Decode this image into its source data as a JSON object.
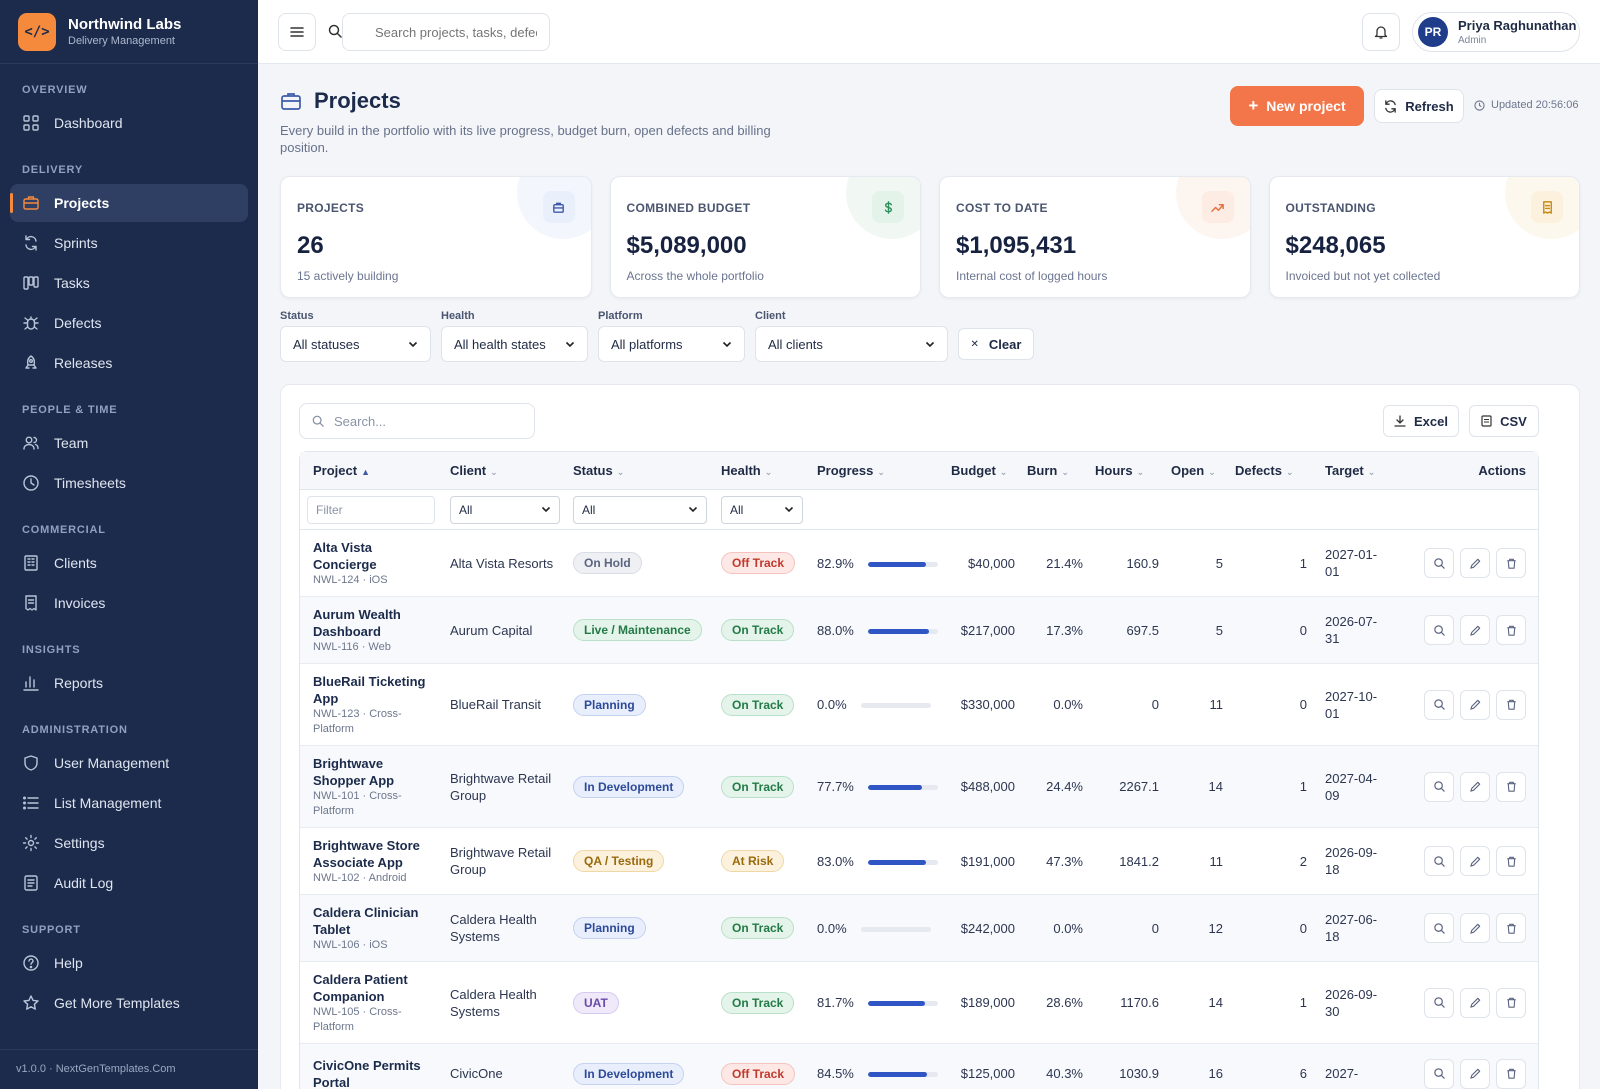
{
  "brand": {
    "name": "Northwind Labs",
    "sub": "Delivery Management",
    "logo": "</>"
  },
  "sidebar": {
    "sections": [
      {
        "heading": "OVERVIEW",
        "items": [
          {
            "label": "Dashboard",
            "icon": "grid-icon"
          }
        ]
      },
      {
        "heading": "DELIVERY",
        "items": [
          {
            "label": "Projects",
            "icon": "briefcase-icon",
            "active": true
          },
          {
            "label": "Sprints",
            "icon": "refresh-icon"
          },
          {
            "label": "Tasks",
            "icon": "kanban-icon"
          },
          {
            "label": "Defects",
            "icon": "bug-icon"
          },
          {
            "label": "Releases",
            "icon": "rocket-icon"
          }
        ]
      },
      {
        "heading": "PEOPLE & TIME",
        "items": [
          {
            "label": "Team",
            "icon": "users-icon"
          },
          {
            "label": "Timesheets",
            "icon": "clock-icon"
          }
        ]
      },
      {
        "heading": "COMMERCIAL",
        "items": [
          {
            "label": "Clients",
            "icon": "building-icon"
          },
          {
            "label": "Invoices",
            "icon": "receipt-icon"
          }
        ]
      },
      {
        "heading": "INSIGHTS",
        "items": [
          {
            "label": "Reports",
            "icon": "bar-chart-icon"
          }
        ]
      },
      {
        "heading": "ADMINISTRATION",
        "items": [
          {
            "label": "User Management",
            "icon": "shield-icon"
          },
          {
            "label": "List Management",
            "icon": "list-icon"
          },
          {
            "label": "Settings",
            "icon": "gear-icon"
          },
          {
            "label": "Audit Log",
            "icon": "document-icon"
          }
        ]
      },
      {
        "heading": "SUPPORT",
        "items": [
          {
            "label": "Help",
            "icon": "help-icon"
          },
          {
            "label": "Get More Templates",
            "icon": "star-icon"
          }
        ]
      }
    ],
    "version": "v1.0.0 · NextGenTemplates.Com"
  },
  "topbar": {
    "search_placeholder": "Search projects, tasks, defects...",
    "user": {
      "initials": "PR",
      "name": "Priya Raghunathan",
      "role": "Admin"
    }
  },
  "page": {
    "title": "Projects",
    "description": "Every build in the portfolio with its live progress, budget burn, open defects and billing position.",
    "new_label": "New project",
    "refresh_label": "Refresh",
    "updated": "Updated 20:56:06"
  },
  "stats": [
    {
      "label": "PROJECTS",
      "value": "26",
      "sub": "15 actively building",
      "icon": "briefcase-icon",
      "color": "#3e5ba9",
      "bg": "#e9effb",
      "circle": "#f3f6fd"
    },
    {
      "label": "COMBINED BUDGET",
      "value": "$5,089,000",
      "sub": "Across the whole portfolio",
      "icon": "dollar-icon",
      "color": "#2f8f5b",
      "bg": "#e3f3ea",
      "circle": "#f1f8f4"
    },
    {
      "label": "COST TO DATE",
      "value": "$1,095,431",
      "sub": "Internal cost of logged hours",
      "icon": "trend-up-icon",
      "color": "#e36e3a",
      "bg": "#fdece3",
      "circle": "#fdf5f0"
    },
    {
      "label": "OUTSTANDING",
      "value": "$248,065",
      "sub": "Invoiced but not yet collected",
      "icon": "receipt-icon",
      "color": "#c98b15",
      "bg": "#fbf1dc",
      "circle": "#fdf8ee"
    }
  ],
  "filters": [
    {
      "label": "Status",
      "value": "All statuses"
    },
    {
      "label": "Health",
      "value": "All health states"
    },
    {
      "label": "Platform",
      "value": "All platforms"
    },
    {
      "label": "Client",
      "value": "All clients"
    }
  ],
  "clear_label": "Clear",
  "table": {
    "search_placeholder": "Search...",
    "excel_label": "Excel",
    "csv_label": "CSV",
    "columns": [
      "Project",
      "Client",
      "Status",
      "Health",
      "Progress",
      "Budget",
      "Burn",
      "Hours",
      "Open",
      "Defects",
      "Target",
      "Actions"
    ],
    "filter_placeholder": "Filter",
    "filter_all": "All",
    "rows": [
      {
        "name": "Alta Vista Concierge",
        "code": "NWL-124 · iOS",
        "client": "Alta Vista Resorts",
        "status": "On Hold",
        "health": "Off Track",
        "progress": "82.9%",
        "progress_value": 82.9,
        "budget": "$40,000",
        "burn": "21.4%",
        "hours": "160.9",
        "open": "5",
        "defects": "1",
        "target": "2027-01-01"
      },
      {
        "name": "Aurum Wealth Dashboard",
        "code": "NWL-116 · Web",
        "client": "Aurum Capital",
        "status": "Live / Maintenance",
        "health": "On Track",
        "progress": "88.0%",
        "progress_value": 88.0,
        "budget": "$217,000",
        "burn": "17.3%",
        "hours": "697.5",
        "open": "5",
        "defects": "0",
        "target": "2026-07-31"
      },
      {
        "name": "BlueRail Ticketing App",
        "code": "NWL-123 · Cross-Platform",
        "client": "BlueRail Transit",
        "status": "Planning",
        "health": "On Track",
        "progress": "0.0%",
        "progress_value": 0,
        "budget": "$330,000",
        "burn": "0.0%",
        "hours": "0",
        "open": "11",
        "defects": "0",
        "target": "2027-10-01"
      },
      {
        "name": "Brightwave Shopper App",
        "code": "NWL-101 · Cross-Platform",
        "client": "Brightwave Retail Group",
        "status": "In Development",
        "health": "On Track",
        "progress": "77.7%",
        "progress_value": 77.7,
        "budget": "$488,000",
        "burn": "24.4%",
        "hours": "2267.1",
        "open": "14",
        "defects": "1",
        "target": "2027-04-09"
      },
      {
        "name": "Brightwave Store Associate App",
        "code": "NWL-102 · Android",
        "client": "Brightwave Retail Group",
        "status": "QA / Testing",
        "health": "At Risk",
        "progress": "83.0%",
        "progress_value": 83.0,
        "budget": "$191,000",
        "burn": "47.3%",
        "hours": "1841.2",
        "open": "11",
        "defects": "2",
        "target": "2026-09-18"
      },
      {
        "name": "Caldera Clinician Tablet",
        "code": "NWL-106 · iOS",
        "client": "Caldera Health Systems",
        "status": "Planning",
        "health": "On Track",
        "progress": "0.0%",
        "progress_value": 0,
        "budget": "$242,000",
        "burn": "0.0%",
        "hours": "0",
        "open": "12",
        "defects": "0",
        "target": "2027-06-18"
      },
      {
        "name": "Caldera Patient Companion",
        "code": "NWL-105 · Cross-Platform",
        "client": "Caldera Health Systems",
        "status": "UAT",
        "health": "On Track",
        "progress": "81.7%",
        "progress_value": 81.7,
        "budget": "$189,000",
        "burn": "28.6%",
        "hours": "1170.6",
        "open": "14",
        "defects": "1",
        "target": "2026-09-30"
      },
      {
        "name": "CivicOne Permits Portal",
        "code": "",
        "client": "CivicOne",
        "status": "In Development",
        "health": "Off Track",
        "progress": "84.5%",
        "progress_value": 84.5,
        "budget": "$125,000",
        "burn": "40.3%",
        "hours": "1030.9",
        "open": "16",
        "defects": "6",
        "target": "2027-"
      }
    ]
  },
  "badge_colors": {
    "On Hold": {
      "fg": "#5b6580",
      "bg": "#eef0f4",
      "border": "#d8dce4"
    },
    "Live / Maintenance": {
      "fg": "#237a47",
      "bg": "#e4f4ea",
      "border": "#b9e0c8"
    },
    "Planning": {
      "fg": "#2d4a9a",
      "bg": "#e8eefb",
      "border": "#c4d1f1"
    },
    "In Development": {
      "fg": "#2d4a9a",
      "bg": "#e8eefb",
      "border": "#c4d1f1"
    },
    "QA / Testing": {
      "fg": "#9a6a0c",
      "bg": "#fbf1dc",
      "border": "#efd8a6"
    },
    "UAT": {
      "fg": "#6a4aa8",
      "bg": "#efe9fa",
      "border": "#d6c9f0"
    },
    "Off Track": {
      "fg": "#c0392b",
      "bg": "#fde8e6",
      "border": "#f4c3bd"
    },
    "On Track": {
      "fg": "#237a47",
      "bg": "#e4f4ea",
      "border": "#b9e0c8"
    },
    "At Risk": {
      "fg": "#9a6a0c",
      "bg": "#fbf1dc",
      "border": "#efd8a6"
    }
  }
}
